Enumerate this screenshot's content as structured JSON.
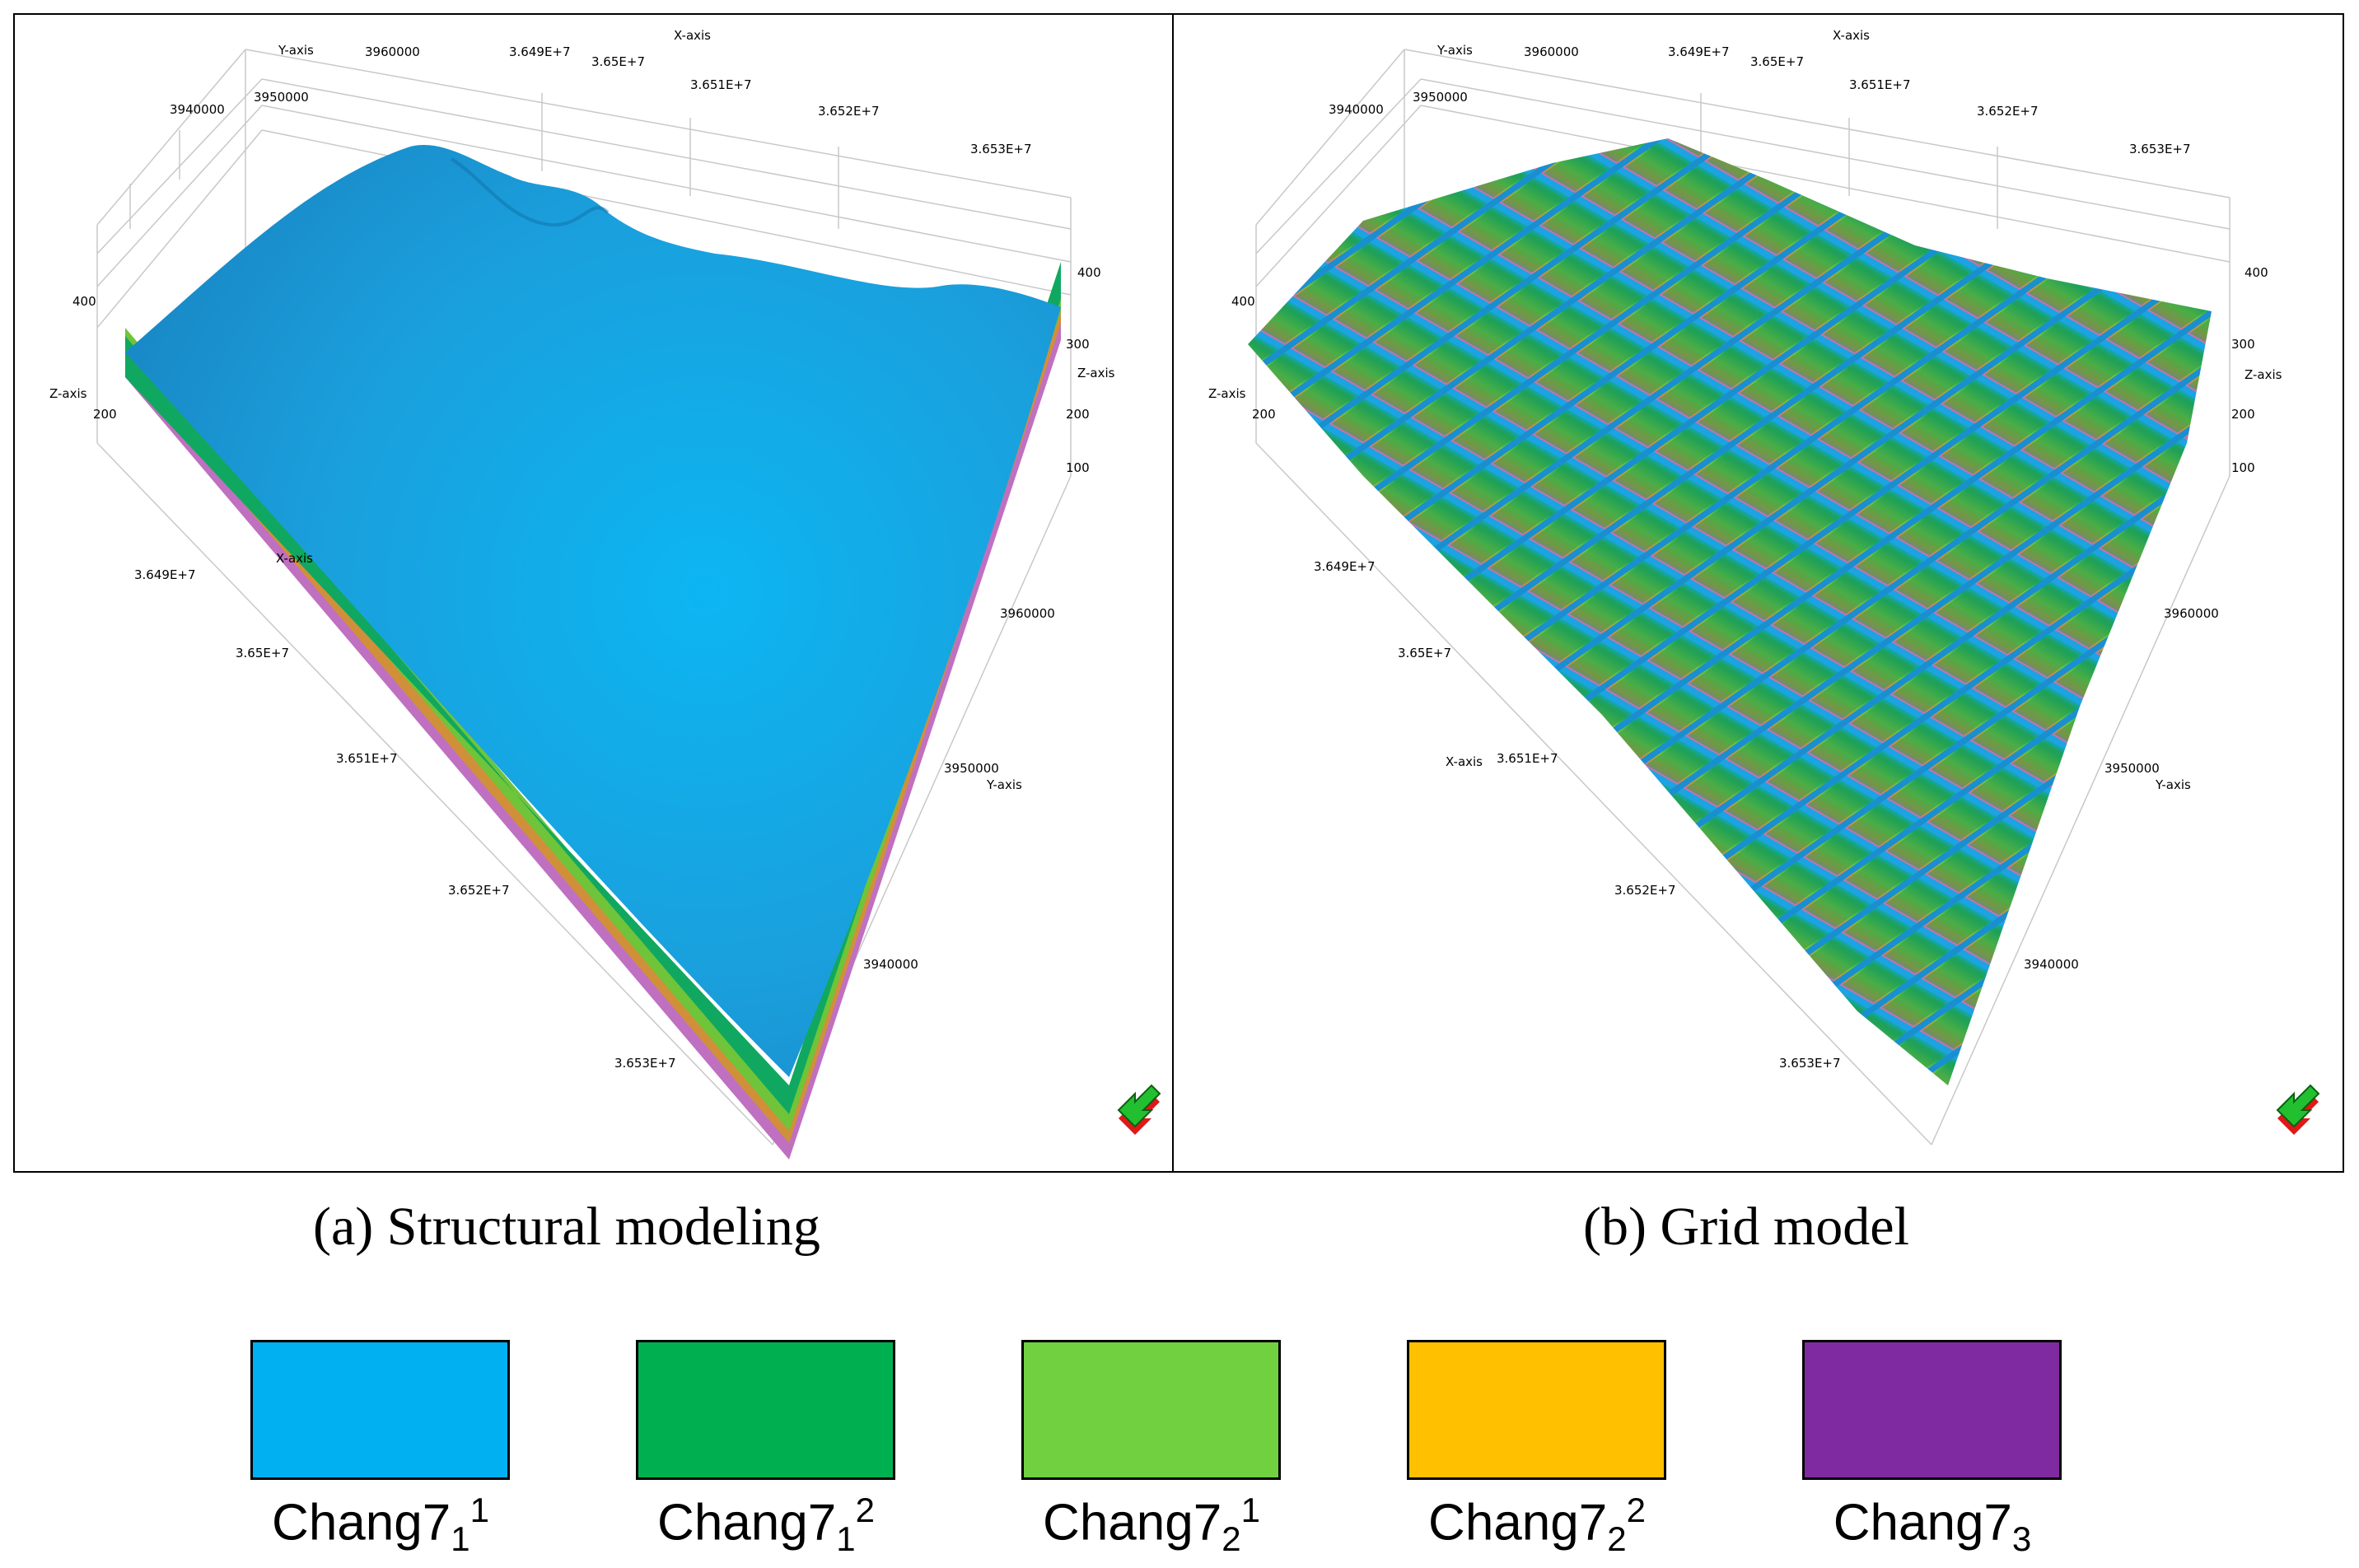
{
  "panels": [
    {
      "caption": "(a) Structural modeling",
      "axis": {
        "x_axis_label": "X-axis",
        "y_axis_label": "Y-axis",
        "z_axis_label": "Z-axis",
        "x_ticks": [
          "3.649E+7",
          "3.65E+7",
          "3.651E+7",
          "3.652E+7",
          "3.653E+7"
        ],
        "y_ticks": [
          "3940000",
          "3950000",
          "3960000"
        ],
        "z_ticks": [
          "400",
          "300",
          "200",
          "100"
        ]
      }
    },
    {
      "caption": "(b) Grid model",
      "axis": {
        "x_axis_label": "X-axis",
        "y_axis_label": "Y-axis",
        "z_axis_label": "Z-axis",
        "x_ticks": [
          "3.649E+7",
          "3.65E+7",
          "3.651E+7",
          "3.652E+7",
          "3.653E+7"
        ],
        "y_ticks": [
          "3940000",
          "3950000",
          "3960000"
        ],
        "z_ticks": [
          "400",
          "300",
          "200",
          "100"
        ]
      }
    }
  ],
  "legend": [
    {
      "base": "Chang7",
      "sub": "1",
      "sup": "1",
      "color": "#00b0f0"
    },
    {
      "base": "Chang7",
      "sub": "1",
      "sup": "2",
      "color": "#00b050"
    },
    {
      "base": "Chang7",
      "sub": "2",
      "sup": "1",
      "color": "#70d040"
    },
    {
      "base": "Chang7",
      "sub": "2",
      "sup": "2",
      "color": "#ffc000"
    },
    {
      "base": "Chang7",
      "sub": "3",
      "sup": "",
      "color": "#7f2aa0"
    }
  ],
  "surface_colors": {
    "top": "#1ba3e2",
    "layer2": "#10a860",
    "layer3": "#70c43a",
    "layer4": "#e0a030",
    "layer5": "#c070c0"
  }
}
